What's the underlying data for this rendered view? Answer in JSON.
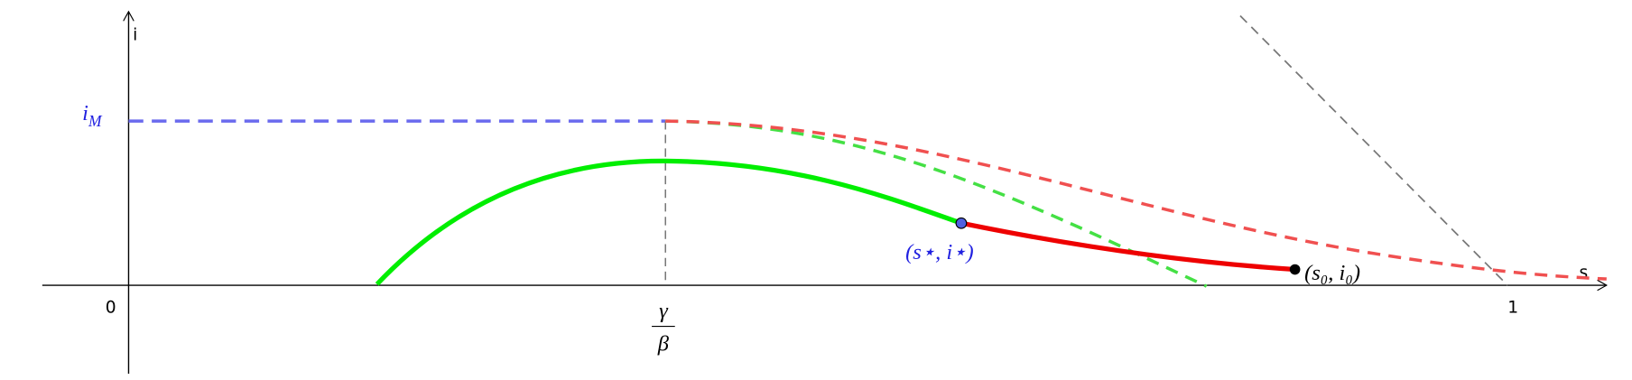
{
  "axes": {
    "y_label": "i",
    "x_label": "s",
    "origin_label": "0",
    "x_one_label": "1"
  },
  "labels": {
    "i_max": {
      "base": "i",
      "sub": "M"
    },
    "gamma_over_beta": {
      "numerator": "γ",
      "denominator": "β"
    },
    "point_star": "(s⋆, i⋆)",
    "point_zero": "(s₀, i₀)"
  }
}
